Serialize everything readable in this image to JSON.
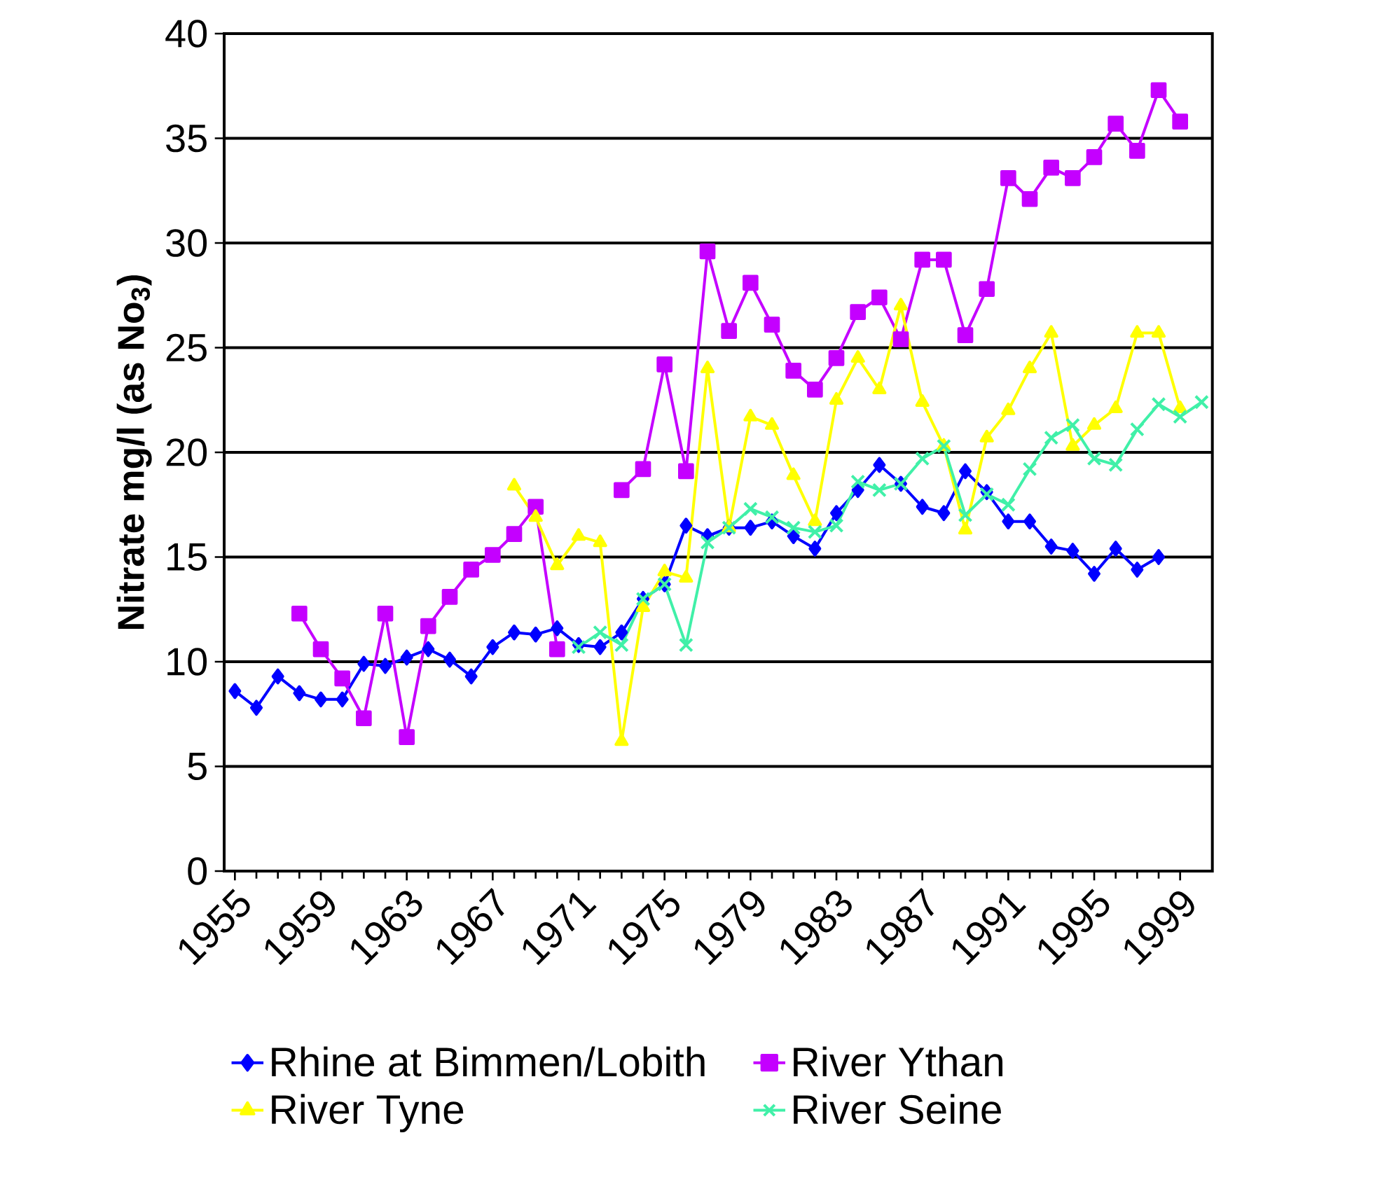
{
  "chart_data": {
    "type": "line",
    "ylabel": "Nitrate mg/l (as No$_{3}$)",
    "x": [
      1955,
      1956,
      1957,
      1958,
      1959,
      1960,
      1961,
      1962,
      1963,
      1964,
      1965,
      1966,
      1967,
      1968,
      1969,
      1970,
      1971,
      1972,
      1973,
      1974,
      1975,
      1976,
      1977,
      1978,
      1979,
      1980,
      1981,
      1982,
      1983,
      1984,
      1985,
      1986,
      1987,
      1988,
      1989,
      1990,
      1991,
      1992,
      1993,
      1994,
      1995,
      1996,
      1997,
      1998,
      1999,
      2000
    ],
    "xlim": [
      1954.5,
      2000.5
    ],
    "xticks": [
      1955,
      1959,
      1963,
      1967,
      1971,
      1975,
      1979,
      1983,
      1987,
      1991,
      1995,
      1999
    ],
    "ylim": [
      0,
      40
    ],
    "yticks": [
      0,
      5,
      10,
      15,
      20,
      25,
      30,
      35,
      40
    ],
    "grid": "y",
    "legend": "bottom",
    "line_style": "solid",
    "series": [
      {
        "name": "Rhine at Bimmen/Lobith",
        "color": "#0000ff",
        "marker": "diamond",
        "values": [
          8.6,
          7.8,
          9.3,
          8.5,
          8.2,
          8.2,
          9.9,
          9.8,
          10.2,
          10.6,
          10.1,
          9.3,
          10.7,
          11.4,
          11.3,
          11.6,
          10.8,
          10.7,
          11.4,
          13.0,
          13.7,
          16.5,
          16.0,
          16.4,
          16.4,
          16.7,
          16.0,
          15.4,
          17.1,
          18.2,
          19.4,
          18.5,
          17.4,
          17.1,
          19.1,
          18.1,
          16.7,
          16.7,
          15.5,
          15.3,
          14.2,
          15.4,
          14.4,
          15.0,
          null,
          null
        ]
      },
      {
        "name": "River Ythan",
        "color": "#c400ff",
        "marker": "square",
        "values": [
          null,
          null,
          null,
          12.3,
          10.6,
          9.2,
          7.3,
          12.3,
          6.4,
          11.7,
          13.1,
          14.4,
          15.1,
          16.1,
          17.4,
          10.6,
          null,
          null,
          18.2,
          19.2,
          24.2,
          19.1,
          29.6,
          25.8,
          28.1,
          26.1,
          23.9,
          23.0,
          24.5,
          26.7,
          27.4,
          25.4,
          29.2,
          29.2,
          25.6,
          27.8,
          33.1,
          32.1,
          33.6,
          33.1,
          34.1,
          35.7,
          34.4,
          37.3,
          35.8,
          null
        ]
      },
      {
        "name": "River Tyne",
        "color": "#ffff00",
        "marker": "triangle",
        "values": [
          null,
          null,
          null,
          null,
          null,
          null,
          null,
          null,
          null,
          null,
          null,
          null,
          null,
          18.4,
          16.9,
          14.6,
          16.0,
          15.7,
          6.2,
          12.6,
          14.3,
          14.0,
          24.0,
          16.4,
          21.7,
          21.3,
          18.9,
          16.7,
          22.5,
          24.5,
          23.0,
          27.0,
          22.4,
          20.3,
          16.3,
          20.7,
          22.0,
          24.0,
          25.7,
          20.3,
          21.3,
          22.1,
          25.7,
          25.7,
          22.1,
          null
        ]
      },
      {
        "name": "River Seine",
        "color": "#40f0a8",
        "marker": "cross",
        "values": [
          null,
          null,
          null,
          null,
          null,
          null,
          null,
          null,
          null,
          null,
          null,
          null,
          null,
          null,
          null,
          null,
          10.7,
          11.4,
          10.8,
          13.0,
          13.7,
          10.8,
          15.7,
          16.4,
          17.3,
          16.9,
          16.4,
          16.2,
          16.5,
          18.6,
          18.2,
          18.5,
          19.7,
          20.3,
          17.0,
          18.0,
          17.5,
          19.2,
          20.7,
          21.3,
          19.7,
          19.4,
          21.1,
          22.3,
          21.7,
          22.4
        ]
      }
    ]
  }
}
